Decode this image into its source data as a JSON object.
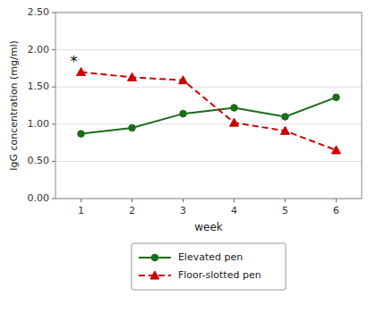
{
  "chart_data": {
    "type": "line",
    "x_label": "week",
    "y_label": "IgG concentration  (mg/ml)",
    "x": [
      1,
      2,
      3,
      4,
      5,
      6
    ],
    "xlim": [
      0.5,
      6.5
    ],
    "xticks": [
      1,
      2,
      3,
      4,
      5,
      6
    ],
    "ylim": [
      0.0,
      2.5
    ],
    "yticks": [
      {
        "value": 0.0,
        "label": "0.00"
      },
      {
        "value": 0.5,
        "label": "0.50"
      },
      {
        "value": 1.0,
        "label": "1.00"
      },
      {
        "value": 1.5,
        "label": "1.50"
      },
      {
        "value": 2.0,
        "label": "2.00"
      },
      {
        "value": 2.5,
        "label": "2.50"
      }
    ],
    "grid": true,
    "legend": "bottom",
    "series": [
      {
        "name": "Elevated pen",
        "color": "#1a6b1a",
        "marker": "circle",
        "line_style": "solid",
        "values": [
          0.87,
          0.95,
          1.14,
          1.22,
          1.1,
          1.36
        ]
      },
      {
        "name": "Floor-slotted pen",
        "color": "#cc0000",
        "marker": "triangle",
        "line_style": "dashed",
        "values": [
          1.7,
          1.63,
          1.59,
          1.02,
          0.91,
          0.65
        ]
      }
    ],
    "annotations": [
      {
        "text": "*",
        "x": 0.93,
        "y": 1.78
      }
    ]
  }
}
